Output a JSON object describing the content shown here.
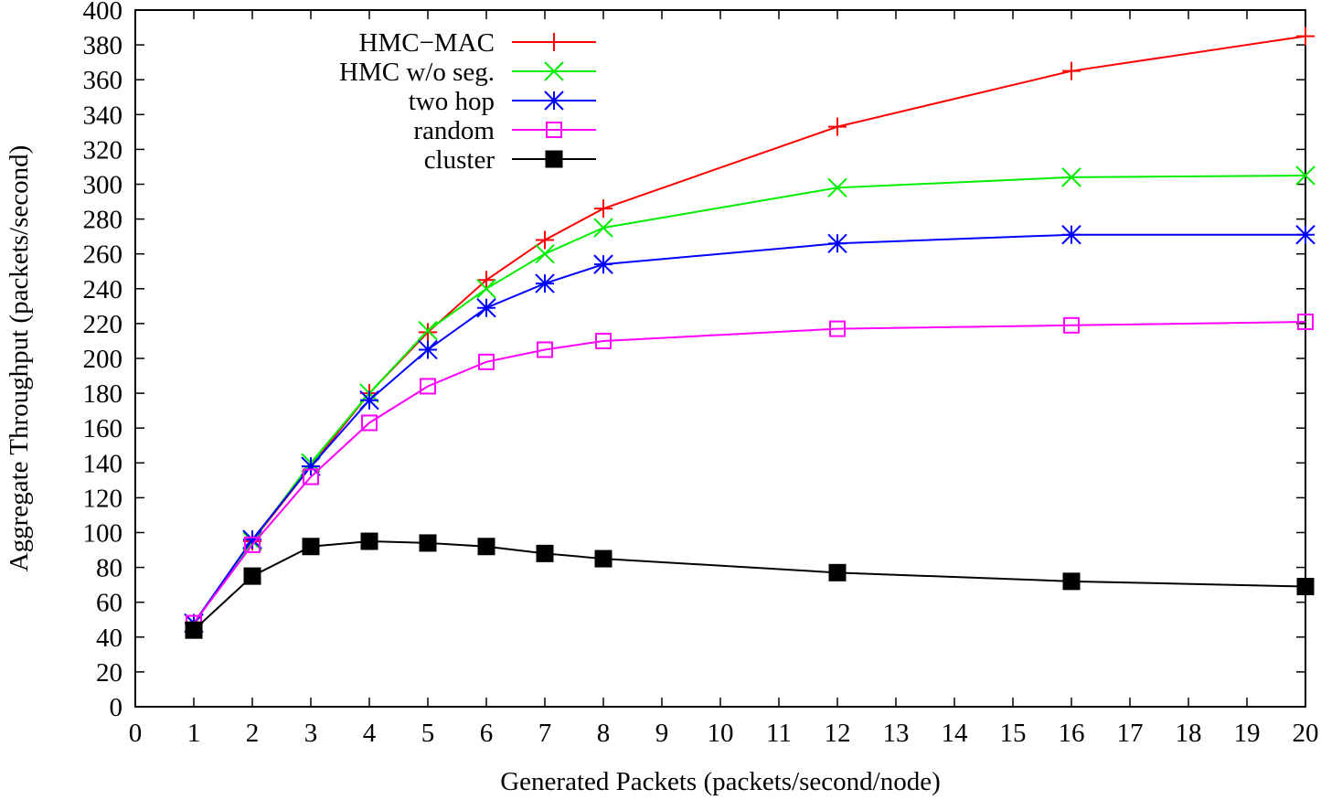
{
  "chart_data": {
    "type": "line",
    "title": "",
    "xlabel": "Generated Packets (packets/second/node)",
    "ylabel": "Aggregate Throughput (packets/second)",
    "xlim": [
      0,
      20
    ],
    "ylim": [
      0,
      400
    ],
    "x_ticks": [
      "0",
      "1",
      "2",
      "3",
      "4",
      "5",
      "6",
      "7",
      "8",
      "9",
      "10",
      "11",
      "12",
      "13",
      "14",
      "15",
      "16",
      "17",
      "18",
      "19",
      "20"
    ],
    "y_ticks": [
      "0",
      "20",
      "40",
      "60",
      "80",
      "100",
      "120",
      "140",
      "160",
      "180",
      "200",
      "220",
      "240",
      "260",
      "280",
      "300",
      "320",
      "340",
      "360",
      "380",
      "400"
    ],
    "grid": false,
    "legend_position": "top-left",
    "x": [
      1,
      2,
      3,
      4,
      5,
      6,
      7,
      8,
      12,
      16,
      20
    ],
    "series": [
      {
        "name": "HMC−MAC",
        "color": "#ff0000",
        "marker": "plus",
        "values": [
          48,
          95,
          138,
          180,
          215,
          245,
          268,
          286,
          333,
          365,
          385
        ]
      },
      {
        "name": "HMC w/o seg.",
        "color": "#00ee00",
        "marker": "cross",
        "values": [
          48,
          95,
          140,
          180,
          216,
          240,
          260,
          275,
          298,
          304,
          305
        ]
      },
      {
        "name": "two hop",
        "color": "#0000ff",
        "marker": "star",
        "values": [
          48,
          96,
          138,
          176,
          205,
          229,
          243,
          254,
          266,
          271,
          271
        ]
      },
      {
        "name": "random",
        "color": "#ff00ff",
        "marker": "open-square",
        "values": [
          48,
          93,
          132,
          163,
          184,
          198,
          205,
          210,
          217,
          219,
          221
        ]
      },
      {
        "name": "cluster",
        "color": "#000000",
        "marker": "filled-square",
        "values": [
          44,
          75,
          92,
          95,
          94,
          92,
          88,
          85,
          77,
          72,
          69
        ]
      }
    ]
  }
}
